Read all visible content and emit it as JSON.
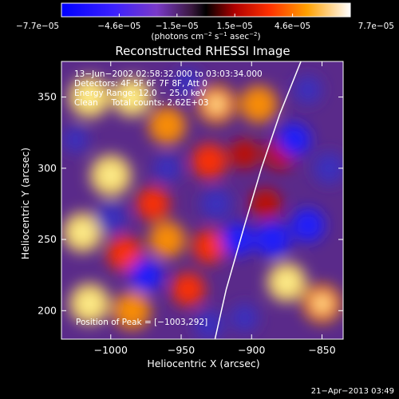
{
  "chart_data": {
    "type": "heatmap",
    "title": "Reconstructed RHESSI Image",
    "xlabel": "Heliocentric X (arcsec)",
    "ylabel": "Heliocentric Y (arcsec)",
    "xlim": [
      -1035,
      -835
    ],
    "ylim": [
      180,
      375
    ],
    "xticks": [
      -1000,
      -950,
      -900,
      -850
    ],
    "xtick_labels": [
      "−1000",
      "−950",
      "−900",
      "−850"
    ],
    "yticks": [
      200,
      250,
      300,
      350
    ],
    "ytick_labels": [
      "200",
      "250",
      "300",
      "350"
    ],
    "colorbar": {
      "range": [
        -7.7e-05,
        7.7e-05
      ],
      "tick_labels": [
        "−7.7e−05",
        "−4.6e−05",
        "−1.5e−05",
        "1.5e−05",
        "4.6e−05",
        "7.7e−05"
      ],
      "label_main": "(photons cm",
      "label_sup1": "−2",
      "label_mid1": " s",
      "label_sup2": "−1",
      "label_mid2": " asec",
      "label_sup3": "−2",
      "label_end": ")"
    },
    "info_lines": [
      "13−Jun−2002 02:58:32.000 to 03:03:34.000",
      "Detectors: 4F 5F 6F 7F 8F, Att 0",
      "Energy Range: 12.0 − 25.0 keV",
      "Clean     Total counts: 2.62E+03"
    ],
    "peak_label": "Position of Peak = [−1003,292]",
    "peak": [
      -1003,
      292
    ],
    "timestamp": "21−Apr−2013 03:49",
    "limb_points": [
      [
        -926,
        180
      ],
      [
        -918,
        215
      ],
      [
        -905,
        260
      ],
      [
        -893,
        300
      ],
      [
        -880,
        338
      ],
      [
        -865,
        375
      ]
    ],
    "sources": [
      [
        -1015,
        350,
        1.0
      ],
      [
        -985,
        350,
        0.9
      ],
      [
        -960,
        330,
        0.8
      ],
      [
        -925,
        345,
        0.85
      ],
      [
        -895,
        345,
        0.8
      ],
      [
        -1000,
        295,
        1.0
      ],
      [
        -970,
        275,
        0.6
      ],
      [
        -930,
        305,
        0.7
      ],
      [
        -1020,
        255,
        0.9
      ],
      [
        -990,
        240,
        0.7
      ],
      [
        -960,
        250,
        0.75
      ],
      [
        -930,
        245,
        0.6
      ],
      [
        -890,
        275,
        0.45
      ],
      [
        -1015,
        205,
        0.95
      ],
      [
        -985,
        200,
        0.8
      ],
      [
        -945,
        215,
        0.6
      ],
      [
        -875,
        220,
        0.9
      ],
      [
        -850,
        205,
        0.85
      ],
      [
        -905,
        310,
        0.4
      ],
      [
        -880,
        310,
        0.5
      ],
      [
        -960,
        300,
        -0.3
      ],
      [
        -1000,
        265,
        -0.5
      ],
      [
        -975,
        225,
        -0.6
      ],
      [
        -925,
        275,
        -0.5
      ],
      [
        -910,
        250,
        -0.6
      ],
      [
        -885,
        250,
        -0.7
      ],
      [
        -860,
        260,
        -0.6
      ],
      [
        -845,
        300,
        -0.5
      ],
      [
        -870,
        320,
        -0.6
      ],
      [
        -930,
        190,
        -0.4
      ],
      [
        -945,
        360,
        -0.3
      ],
      [
        -1025,
        320,
        -0.2
      ],
      [
        -905,
        195,
        -0.3
      ],
      [
        -860,
        355,
        -0.3
      ]
    ]
  }
}
